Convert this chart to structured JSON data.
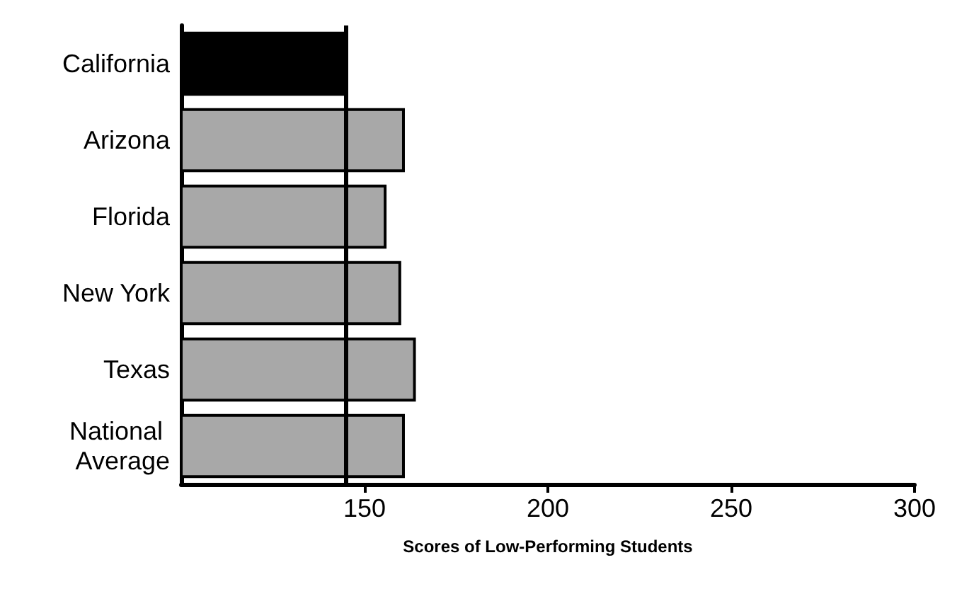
{
  "chart_data": {
    "type": "bar",
    "orientation": "horizontal",
    "xlabel": "Scores of Low-Performing Students",
    "categories": [
      "California",
      "Arizona",
      "Florida",
      "New York",
      "Texas",
      "National Average"
    ],
    "values": [
      145,
      161,
      156,
      160,
      164,
      161
    ],
    "colors": [
      "#000000",
      "#a8a8a8",
      "#a8a8a8",
      "#a8a8a8",
      "#a8a8a8",
      "#a8a8a8"
    ],
    "xlim": [
      100,
      300
    ],
    "xticks": [
      150,
      200,
      250,
      300
    ],
    "grid": false,
    "ref_lines": [
      {
        "axis": "x",
        "value": 145,
        "color": "#000000"
      }
    ]
  }
}
